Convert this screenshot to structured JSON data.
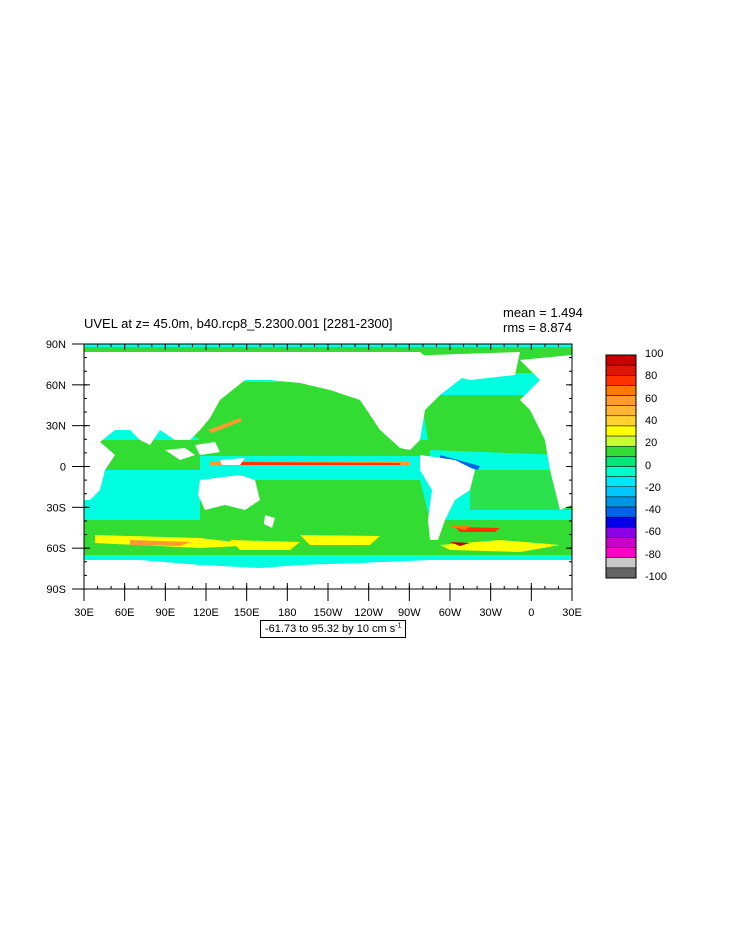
{
  "title": "UVEL at z=  45.0m, b40.rcp8_5.2300.001 [2281-2300]",
  "stats": {
    "mean": "mean = 1.494",
    "rms": "rms = 8.874"
  },
  "range_label": {
    "text": "-61.73 to 95.32 by 10 cm s",
    "exponent": "-1"
  },
  "axes": {
    "x_ticks": [
      "30E",
      "60E",
      "90E",
      "120E",
      "150E",
      "180",
      "150W",
      "120W",
      "90W",
      "60W",
      "30W",
      "0",
      "30E"
    ],
    "y_ticks": [
      "90N",
      "60N",
      "30N",
      "0",
      "30S",
      "60S",
      "90S"
    ]
  },
  "colorbar": {
    "levels": [
      "100",
      "80",
      "60",
      "40",
      "20",
      "0",
      "-20",
      "-40",
      "-60",
      "-80",
      "-100"
    ],
    "colors": [
      "#c80000",
      "#e01400",
      "#ff3200",
      "#ff7800",
      "#ff9a30",
      "#ffb432",
      "#ffd232",
      "#ffff00",
      "#c8ff32",
      "#32dc32",
      "#00e678",
      "#00ffc8",
      "#00e6ff",
      "#00c8ff",
      "#0096e6",
      "#0064e6",
      "#0000e6",
      "#8c00e6",
      "#c800c8",
      "#ff00c8",
      "#c8c8c8",
      "#646464"
    ]
  },
  "chart_data": {
    "type": "map",
    "variable": "UVEL",
    "units": "cm s-1",
    "depth": "45.0m",
    "case": "b40.rcp8_5.2300.001",
    "years": "2281-2300",
    "mean": 1.494,
    "rms": 8.874,
    "min": -61.73,
    "max": 95.32,
    "contour_interval": 10,
    "lon_range": [
      30,
      390
    ],
    "lat_range": [
      -90,
      90
    ]
  }
}
